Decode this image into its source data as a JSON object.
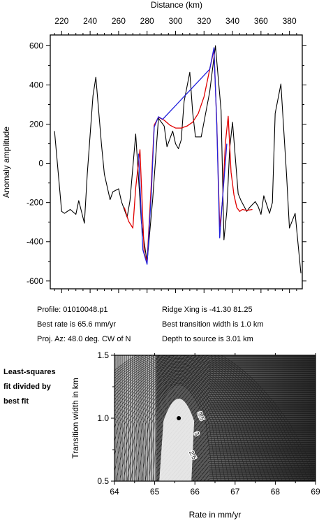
{
  "top_chart": {
    "x_label": "Distance (km)",
    "y_label": "Anomaly amplitude",
    "x_ticks": [
      220,
      240,
      260,
      280,
      300,
      320,
      340,
      360,
      380
    ],
    "y_ticks": [
      600,
      400,
      200,
      0,
      -200,
      -400,
      -600
    ],
    "x_range": [
      212,
      389
    ],
    "y_range": [
      -640,
      655
    ]
  },
  "info": {
    "profile": "Profile: 01010048.p1",
    "best_rate": "Best rate is 65.6 mm/yr",
    "proj_az": "Proj. Az: 48.0 deg. CW of N",
    "ridge_xing": "Ridge Xing is -41.30 81.25",
    "transition": "Best transition width is 1.0 km",
    "depth": "Depth to source is   3.01 km"
  },
  "side_note": [
    "Least-squares",
    "fit divided by",
    "best fit"
  ],
  "bottom_chart": {
    "x_label": "Rate in mm/yr",
    "y_label": "Transition width in km",
    "x_ticks": [
      "64",
      "65",
      "66",
      "67",
      "68",
      "69"
    ],
    "y_ticks": [
      "0.5",
      "1.0",
      "1.5"
    ],
    "x_range": [
      64,
      69
    ],
    "y_range": [
      0.5,
      1.5
    ],
    "best_point": {
      "rate": 65.6,
      "width": 1.0
    },
    "contour_labels": [
      {
        "text": "3.5",
        "x": 66.1,
        "y": 1.01
      },
      {
        "text": "3",
        "x": 66.0,
        "y": 0.87
      },
      {
        "text": "2.5",
        "x": 65.9,
        "y": 0.7
      }
    ]
  },
  "chart_data": [
    {
      "type": "line",
      "xlabel": "Distance (km)",
      "ylabel": "Anomaly amplitude",
      "xlim": [
        212,
        389
      ],
      "ylim": [
        -640,
        655
      ],
      "colors": {
        "observed": "#000000",
        "model": "#e00000",
        "fit": "#2222dd"
      },
      "series": [
        {
          "key": "observed",
          "x": [
            215,
            220,
            222,
            226,
            230,
            232,
            236,
            238,
            242,
            244,
            248,
            250,
            254,
            256,
            260,
            262,
            266,
            268,
            272,
            276,
            280,
            284,
            288,
            292,
            294,
            298,
            300,
            302,
            304,
            306,
            310,
            312,
            314,
            318,
            324,
            328,
            332,
            334,
            336,
            338,
            340,
            344,
            346,
            350,
            352,
            356,
            358,
            360,
            362,
            366,
            368,
            370,
            374,
            378,
            380,
            384,
            388
          ],
          "y": [
            165,
            -245,
            -255,
            -235,
            -260,
            -190,
            -305,
            -55,
            345,
            440,
            95,
            -55,
            -185,
            -145,
            -130,
            -195,
            -275,
            -190,
            150,
            -300,
            -505,
            -180,
            230,
            190,
            85,
            165,
            100,
            75,
            120,
            315,
            465,
            260,
            135,
            135,
            365,
            600,
            270,
            -390,
            -245,
            75,
            210,
            -155,
            -190,
            -245,
            -225,
            -195,
            -220,
            -260,
            -165,
            -255,
            -200,
            255,
            405,
            -65,
            -330,
            -255,
            -560
          ]
        },
        {
          "key": "model",
          "x": [
            264,
            267,
            270,
            272,
            275,
            278,
            280,
            283,
            285,
            288,
            292,
            296,
            300,
            304,
            308,
            312,
            316,
            320,
            324,
            327,
            329,
            331,
            333,
            335,
            337,
            339,
            341,
            343,
            345,
            347,
            350,
            354
          ],
          "y": [
            -225,
            -295,
            -330,
            -125,
            70,
            -460,
            -500,
            -100,
            195,
            235,
            220,
            195,
            180,
            180,
            190,
            210,
            255,
            340,
            480,
            580,
            200,
            -325,
            -190,
            105,
            240,
            -45,
            -160,
            -225,
            -245,
            -235,
            -240,
            -235
          ]
        },
        {
          "key": "fit",
          "x": [
            274,
            277,
            280,
            283,
            285,
            288,
            291,
            324,
            327,
            329,
            331,
            333,
            336
          ],
          "y": [
            50,
            -440,
            -515,
            -150,
            185,
            238,
            225,
            480,
            590,
            190,
            -380,
            -180,
            100
          ]
        }
      ]
    },
    {
      "type": "heatmap",
      "xlabel": "Rate in mm/yr",
      "ylabel": "Transition width in km",
      "xlim": [
        64,
        69
      ],
      "ylim": [
        0.5,
        1.5
      ],
      "best_point": {
        "rate": 65.6,
        "width": 1.0
      }
    }
  ]
}
